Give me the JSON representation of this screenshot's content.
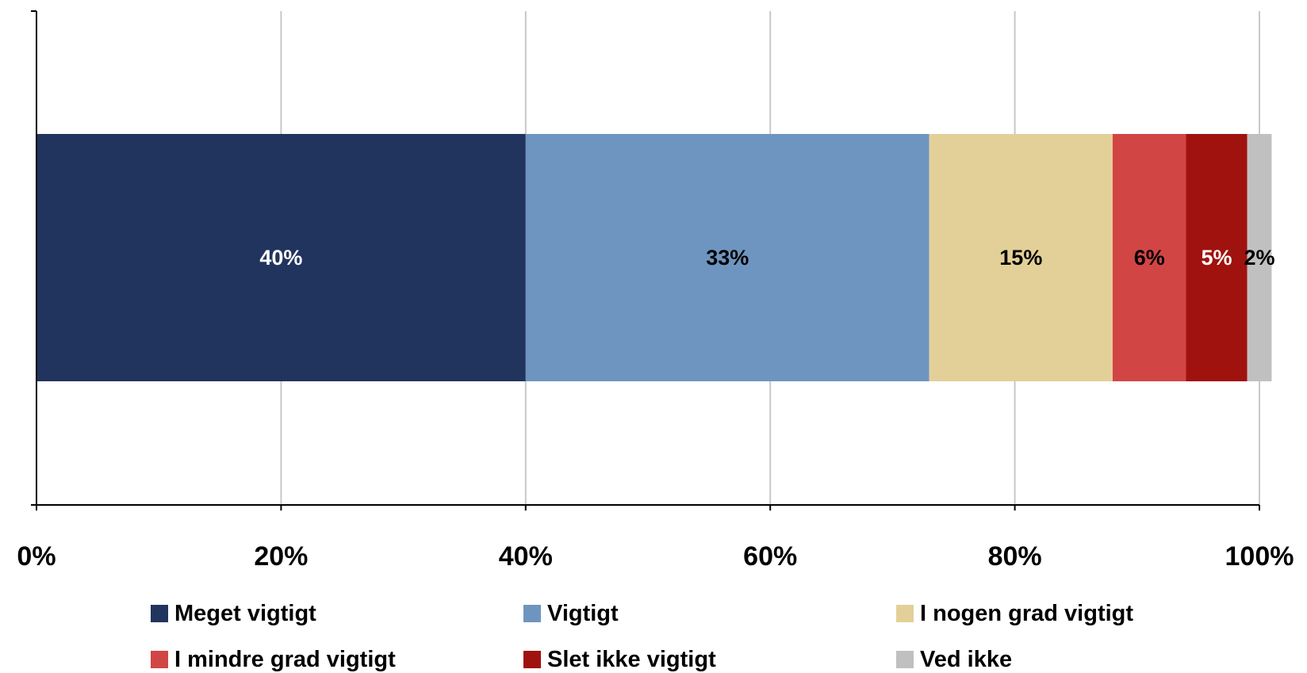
{
  "chart_data": {
    "type": "bar",
    "orientation": "horizontal",
    "stacked": "100%",
    "categories": [
      ""
    ],
    "series": [
      {
        "name": "Meget vigtigt",
        "values": [
          40
        ],
        "label": "40%",
        "color": "#21345e",
        "label_color": "#ffffff"
      },
      {
        "name": "Vigtigt",
        "values": [
          33
        ],
        "label": "33%",
        "color": "#6e95c0",
        "label_color": "#000000"
      },
      {
        "name": "I nogen grad vigtigt",
        "values": [
          15
        ],
        "label": "15%",
        "color": "#e3d098",
        "label_color": "#000000"
      },
      {
        "name": "I mindre grad vigtigt",
        "values": [
          6
        ],
        "label": "6%",
        "color": "#d24545",
        "label_color": "#000000"
      },
      {
        "name": "Slet ikke vigtigt",
        "values": [
          5
        ],
        "label": "5%",
        "color": "#a0120e",
        "label_color": "#ffffff"
      },
      {
        "name": "Ved ikke",
        "values": [
          2
        ],
        "label": "2%",
        "color": "#c0c0c0",
        "label_color": "#000000"
      }
    ],
    "xlim": [
      0,
      100
    ],
    "x_ticks": [
      0,
      20,
      40,
      60,
      80,
      100
    ],
    "x_tick_labels": [
      "0%",
      "20%",
      "40%",
      "60%",
      "80%",
      "100%"
    ],
    "title": "",
    "xlabel": "",
    "ylabel": "",
    "grid": true,
    "legend_position": "bottom"
  }
}
